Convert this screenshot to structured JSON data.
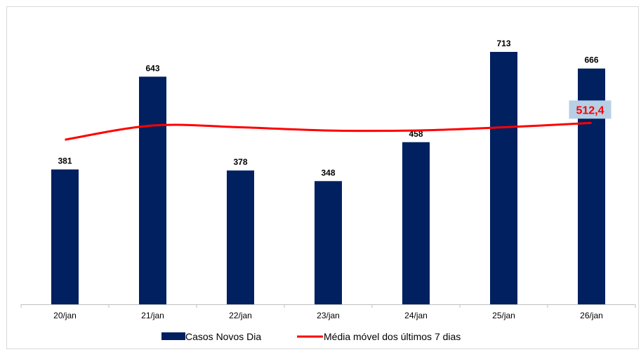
{
  "chart_data": {
    "type": "bar",
    "categories": [
      "20/jan",
      "21/jan",
      "22/jan",
      "23/jan",
      "24/jan",
      "25/jan",
      "26/jan"
    ],
    "ylim": [
      0,
      800
    ],
    "grid": false,
    "legend_position": "bottom",
    "series": [
      {
        "name": "Casos Novos Dia",
        "type": "bar",
        "color": "#002060",
        "values": [
          381,
          643,
          378,
          348,
          458,
          713,
          666
        ],
        "labels": [
          "381",
          "643",
          "378",
          "348",
          "458",
          "713",
          "666"
        ]
      },
      {
        "name": "Média móvel dos últimos 7 dias",
        "type": "line",
        "color": "#ff0000",
        "values": [
          465,
          505,
          500,
          491,
          491,
          500,
          512.4
        ]
      }
    ],
    "callout": {
      "text": "512,4",
      "category_index": 6,
      "text_color": "#ff0000",
      "background": "#b7cfe6"
    }
  }
}
